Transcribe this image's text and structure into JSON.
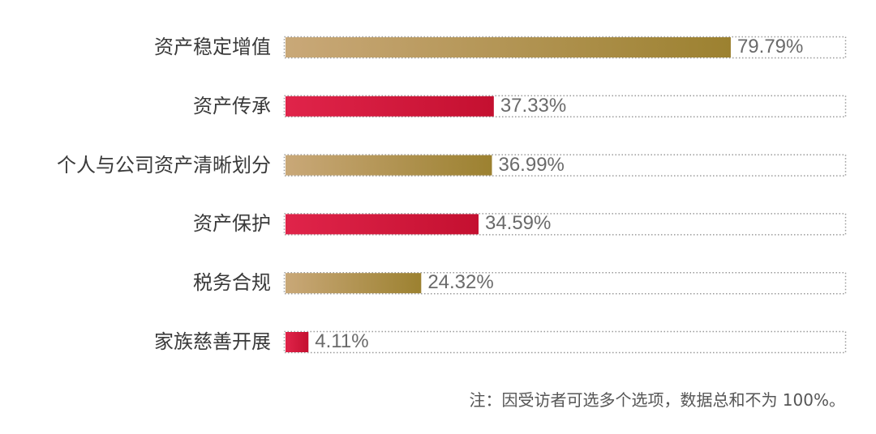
{
  "chart_data": {
    "type": "bar",
    "orientation": "horizontal",
    "categories": [
      "资产稳定增值",
      "资产传承",
      "个人与公司资产清晰划分",
      "资产保护",
      "税务合规",
      "家族慈善开展"
    ],
    "values": [
      79.79,
      37.33,
      36.99,
      34.59,
      24.32,
      4.11
    ],
    "value_labels": [
      "79.79%",
      "37.33%",
      "36.99%",
      "34.59%",
      "24.32%",
      "4.11%"
    ],
    "xlim": [
      0,
      100
    ],
    "grid": false,
    "colors": {
      "gold_start": "#c9a878",
      "gold_end": "#9c8130",
      "red_start": "#e0244a",
      "red_end": "#c41030",
      "track_border": "#9a9a9a"
    },
    "bar_color_sequence": [
      "gold",
      "red",
      "gold",
      "red",
      "gold",
      "red"
    ]
  },
  "note": "注：因受访者可选多个选项，数据总和不为 100%。"
}
